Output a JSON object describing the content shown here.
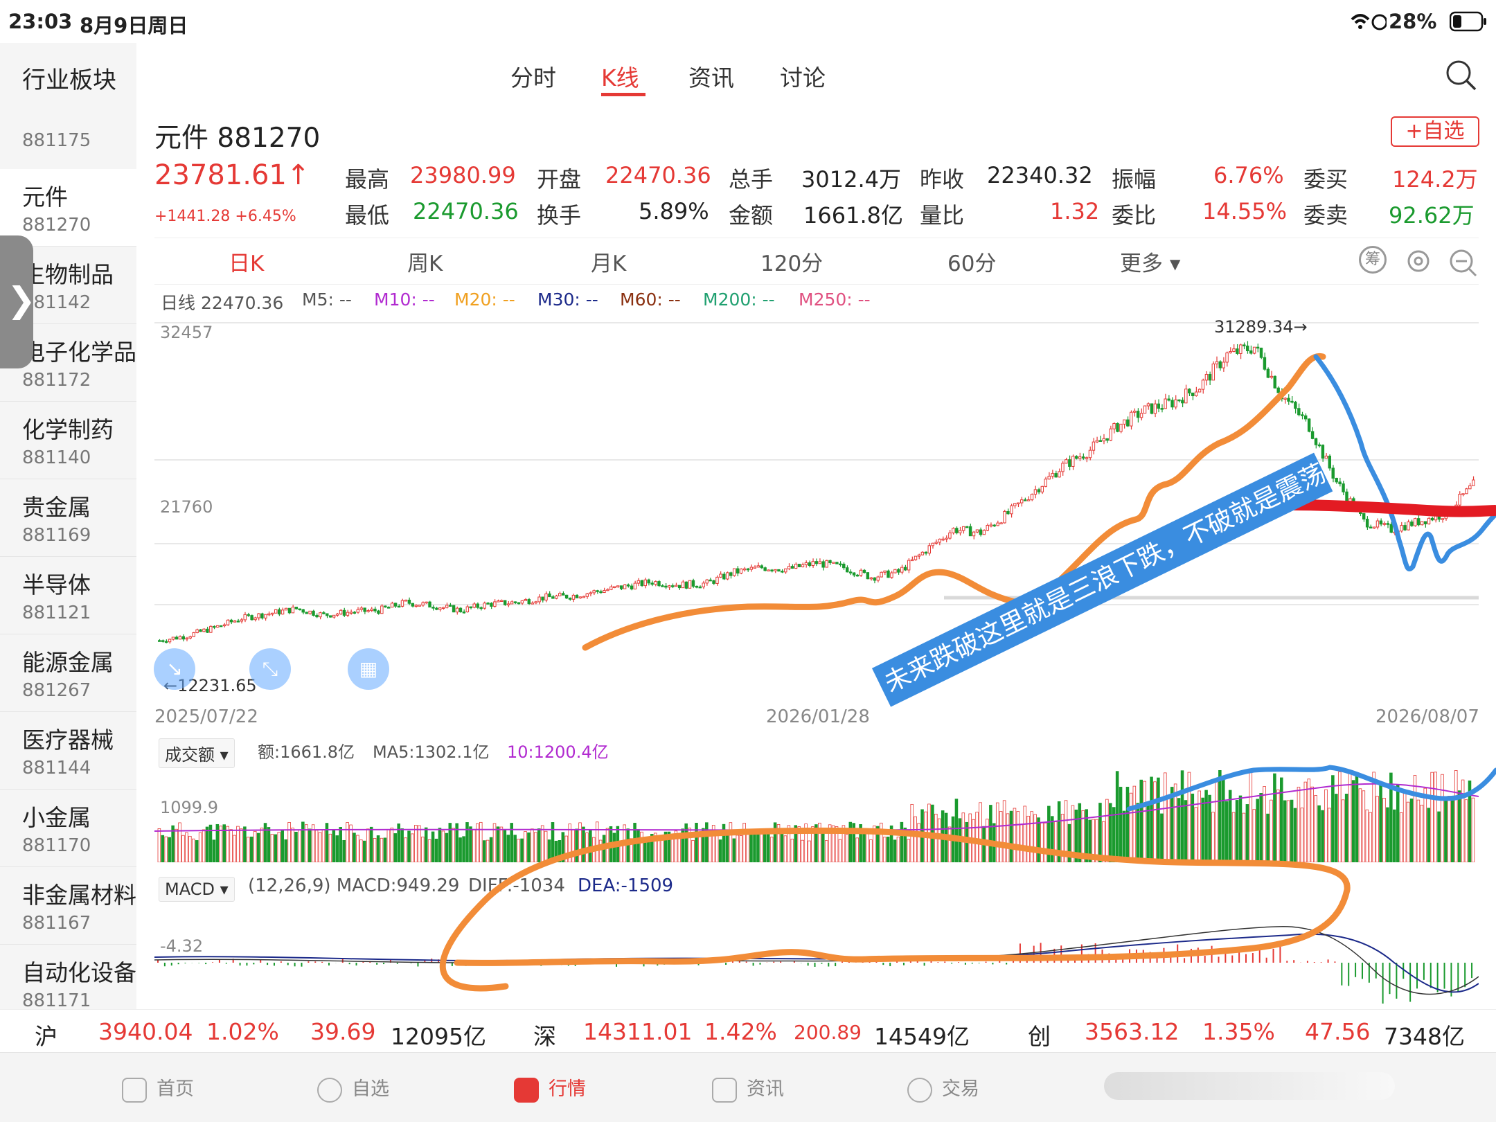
{
  "status_bar": {
    "time": "23:03",
    "date": "8月9日周日",
    "battery": "28%"
  },
  "sidebar": {
    "title": "行业板块",
    "cut_code": "881175",
    "items": [
      {
        "name": "元件",
        "code": "881270"
      },
      {
        "name": "生物制品",
        "code": "881142"
      },
      {
        "name": "电子化学品",
        "code": "881172"
      },
      {
        "name": "化学制药",
        "code": "881140"
      },
      {
        "name": "贵金属",
        "code": "881169"
      },
      {
        "name": "半导体",
        "code": "881121"
      },
      {
        "name": "能源金属",
        "code": "881267"
      },
      {
        "name": "医疗器械",
        "code": "881144"
      },
      {
        "name": "小金属",
        "code": "881170"
      },
      {
        "name": "非金属材料",
        "code": "881167"
      },
      {
        "name": "自动化设备",
        "code": "881171"
      }
    ]
  },
  "header": {
    "tabs": [
      "分时",
      "K线",
      "资讯",
      "讨论"
    ],
    "active_tab": "K线"
  },
  "stock": {
    "name_code": "元件 881270",
    "price": "23781.61↑",
    "change": "+1441.28 +6.45%",
    "watch_button": "+自选",
    "row1": [
      {
        "label": "最高",
        "value": "23980.99"
      },
      {
        "label": "开盘",
        "value": "22470.36"
      },
      {
        "label": "总手",
        "value": "3012.4万"
      },
      {
        "label": "昨收",
        "value": "22340.32"
      },
      {
        "label": "振幅",
        "value": "6.76%"
      },
      {
        "label": "委买",
        "value": "124.2万"
      }
    ],
    "row2": [
      {
        "label": "最低",
        "value": "22470.36"
      },
      {
        "label": "换手",
        "value": "5.89%"
      },
      {
        "label": "金额",
        "value": "1661.8亿"
      },
      {
        "label": "量比",
        "value": "1.32"
      },
      {
        "label": "委比",
        "value": "14.55%"
      },
      {
        "label": "委卖",
        "value": "92.62万"
      }
    ]
  },
  "periods": [
    "日K",
    "周K",
    "月K",
    "120分",
    "60分",
    "更多 ▾"
  ],
  "ma_line": {
    "daily": "日线  22470.36",
    "m5": "M5: --",
    "m10": "M10: --",
    "m20": "M20: --",
    "m30": "M30: --",
    "m60": "M60: --",
    "m200": "M200: --",
    "m250": "M250: --"
  },
  "colors": {
    "up": "#e53935",
    "down": "#1a9a2e",
    "annot_orange": "#f28c38",
    "annot_blue": "#3a8de0",
    "annot_red": "#e31b23"
  },
  "chart_data": {
    "type": "candlestick",
    "x_start": "2025/07/22",
    "x_mid": "2026/01/28",
    "x_end": "2026/08/07",
    "y_ticks": [
      "32457",
      "21760"
    ],
    "high_label": "31289.34→",
    "low_label": "←12231.65",
    "ylim": [
      9000,
      33000
    ],
    "close_path": [
      [
        0,
        12500
      ],
      [
        8,
        12800
      ],
      [
        16,
        13300
      ],
      [
        24,
        13900
      ],
      [
        32,
        14200
      ],
      [
        40,
        14500
      ],
      [
        48,
        14100
      ],
      [
        56,
        14300
      ],
      [
        64,
        14400
      ],
      [
        72,
        14900
      ],
      [
        80,
        14700
      ],
      [
        88,
        14400
      ],
      [
        96,
        14800
      ],
      [
        104,
        14900
      ],
      [
        112,
        15200
      ],
      [
        120,
        15300
      ],
      [
        128,
        15600
      ],
      [
        136,
        15900
      ],
      [
        144,
        16200
      ],
      [
        152,
        16000
      ],
      [
        160,
        16100
      ],
      [
        168,
        16800
      ],
      [
        176,
        17100
      ],
      [
        184,
        17000
      ],
      [
        192,
        17400
      ],
      [
        200,
        17100
      ],
      [
        208,
        16500
      ],
      [
        216,
        16800
      ],
      [
        224,
        18200
      ],
      [
        232,
        19500
      ],
      [
        240,
        19300
      ],
      [
        248,
        20500
      ],
      [
        256,
        22000
      ],
      [
        264,
        23500
      ],
      [
        272,
        24500
      ],
      [
        280,
        26000
      ],
      [
        288,
        27000
      ],
      [
        296,
        27500
      ],
      [
        304,
        28500
      ],
      [
        312,
        30500
      ],
      [
        320,
        31000
      ],
      [
        328,
        28000
      ],
      [
        336,
        26000
      ],
      [
        344,
        22500
      ],
      [
        352,
        20000
      ],
      [
        360,
        19500
      ],
      [
        368,
        20000
      ],
      [
        376,
        20500
      ],
      [
        384,
        22300
      ]
    ],
    "volume": {
      "label": "成交额",
      "amount": "额:1661.8亿",
      "ma5": "MA5:1302.1亿",
      "ma10": "10:1200.4亿",
      "y_tick": "1099.9"
    },
    "macd": {
      "label": "MACD",
      "params": "(12,26,9) MACD:949.29",
      "diff": "DIFF:-1034",
      "dea": "DEA:-1509",
      "y_tick": "-4.32"
    }
  },
  "annotation_text": "未来跌破这里就是三浪下跌，不破就是震荡",
  "ticker": {
    "sh": {
      "name": "沪",
      "value": "3940.04",
      "pct": "1.02%",
      "chg": "39.69",
      "amount": "12095亿"
    },
    "sz": {
      "name": "深",
      "value": "14311.01",
      "pct": "1.42%",
      "chg": "200.89",
      "amount": "14549亿"
    },
    "cy": {
      "name": "创",
      "value": "3563.12",
      "pct": "1.35%",
      "chg": "47.56",
      "amount": "7348亿"
    }
  },
  "bottom_nav": [
    "首页",
    "自选",
    "行情",
    "资讯",
    "交易"
  ]
}
